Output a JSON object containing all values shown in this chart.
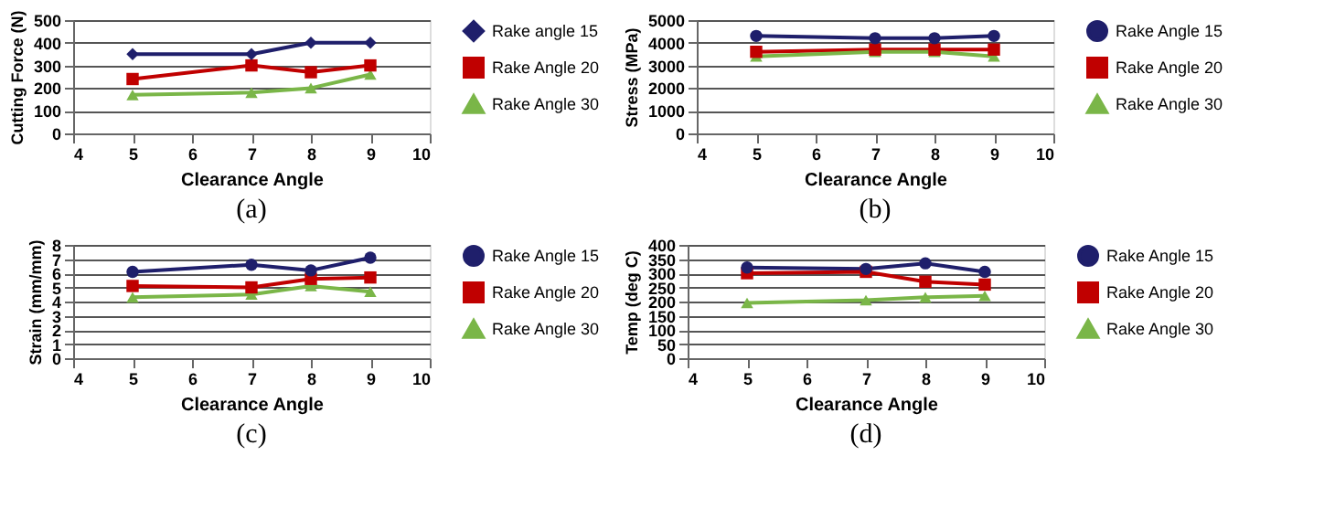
{
  "chart_data": [
    {
      "type": "line",
      "xlabel": "Clearance Angle",
      "ylabel": "Cutting Force (N)",
      "annotations": [
        "(a)"
      ],
      "x": [
        5,
        7,
        8,
        9
      ],
      "xlim": [
        4,
        10
      ],
      "xticks": [
        4,
        5,
        6,
        7,
        8,
        9,
        10
      ],
      "ylim": [
        0,
        500
      ],
      "yticks": [
        0,
        100,
        200,
        300,
        400,
        500
      ],
      "grid": "y",
      "legend": "right",
      "series": [
        {
          "name": "Rake angle 15",
          "color": "#1f1f6b",
          "marker": "diamond",
          "values": [
            350,
            350,
            400,
            400
          ]
        },
        {
          "name": "Rake Angle 20",
          "color": "#c00000",
          "marker": "square",
          "values": [
            240,
            300,
            270,
            300
          ]
        },
        {
          "name": "Rake Angle 30",
          "color": "#7ab648",
          "marker": "triangle",
          "values": [
            170,
            180,
            200,
            260
          ]
        }
      ]
    },
    {
      "type": "line",
      "xlabel": "Clearance Angle",
      "ylabel": "Stress (MPa)",
      "annotations": [
        "(b)"
      ],
      "x": [
        5,
        7,
        8,
        9
      ],
      "xlim": [
        4,
        10
      ],
      "xticks": [
        4,
        5,
        6,
        7,
        8,
        9,
        10
      ],
      "ylim": [
        0,
        5000
      ],
      "yticks": [
        0,
        1000,
        2000,
        3000,
        4000,
        5000
      ],
      "grid": "y",
      "legend": "right",
      "series": [
        {
          "name": "Rake Angle 15",
          "color": "#1f1f6b",
          "marker": "circle",
          "values": [
            4300,
            4200,
            4200,
            4300
          ]
        },
        {
          "name": "Rake Angle 20",
          "color": "#c00000",
          "marker": "square",
          "values": [
            3600,
            3700,
            3700,
            3700
          ]
        },
        {
          "name": "Rake Angle 30",
          "color": "#7ab648",
          "marker": "triangle",
          "values": [
            3400,
            3600,
            3600,
            3400
          ]
        }
      ]
    },
    {
      "type": "line",
      "xlabel": "Clearance Angle",
      "ylabel": "Strain (mm/mm)",
      "annotations": [
        "(c)"
      ],
      "x": [
        5,
        7,
        8,
        9
      ],
      "xlim": [
        4,
        10
      ],
      "xticks": [
        4,
        5,
        6,
        7,
        8,
        9,
        10
      ],
      "ylim": [
        0,
        8
      ],
      "yticks": [
        0,
        1,
        2,
        3,
        4,
        5,
        6,
        7,
        8
      ],
      "grid": "y",
      "legend": "right",
      "series": [
        {
          "name": "Rake Angle 15",
          "color": "#1f1f6b",
          "marker": "circle",
          "values": [
            6.1,
            6.6,
            6.2,
            7.1
          ]
        },
        {
          "name": "Rake Angle 20",
          "color": "#c00000",
          "marker": "square",
          "values": [
            5.1,
            5.0,
            5.6,
            5.7
          ]
        },
        {
          "name": "Rake Angle 30",
          "color": "#7ab648",
          "marker": "triangle",
          "values": [
            4.3,
            4.5,
            5.1,
            4.7
          ]
        }
      ]
    },
    {
      "type": "line",
      "xlabel": "Clearance Angle",
      "ylabel": "Temp (deg C)",
      "annotations": [
        "(d)"
      ],
      "x": [
        5,
        7,
        8,
        9
      ],
      "xlim": [
        4,
        10
      ],
      "xticks": [
        4,
        5,
        6,
        7,
        8,
        9,
        10
      ],
      "ylim": [
        0,
        400
      ],
      "yticks": [
        0,
        50,
        100,
        150,
        200,
        250,
        300,
        350,
        400
      ],
      "grid": "y",
      "legend": "right",
      "series": [
        {
          "name": "Rake Angle 15",
          "color": "#1f1f6b",
          "marker": "circle",
          "values": [
            320,
            315,
            335,
            305
          ]
        },
        {
          "name": "Rake Angle 20",
          "color": "#c00000",
          "marker": "square",
          "values": [
            300,
            305,
            270,
            260
          ]
        },
        {
          "name": "Rake Angle 30",
          "color": "#7ab648",
          "marker": "triangle",
          "values": [
            195,
            205,
            215,
            220
          ]
        }
      ]
    }
  ]
}
